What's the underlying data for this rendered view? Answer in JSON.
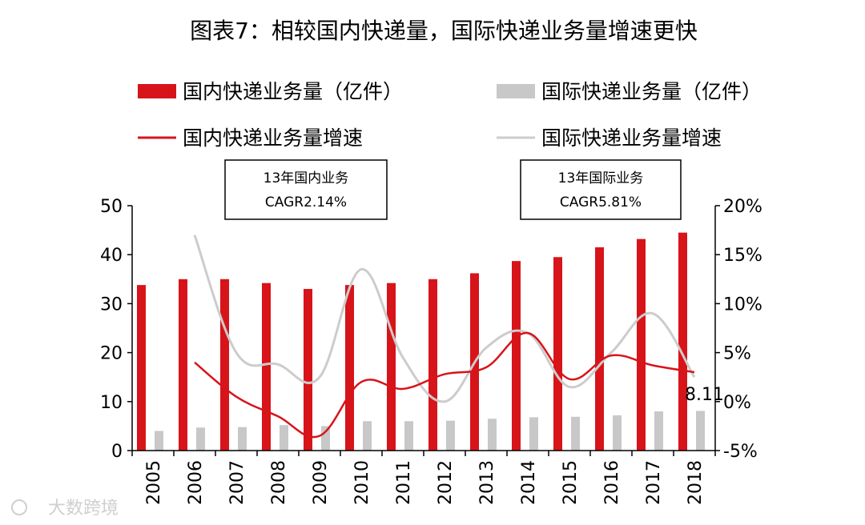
{
  "chart_data": {
    "type": "bar",
    "title": "图表7：相较国内快递量，国际快递业务量增速更快",
    "categories": [
      "2005",
      "2006",
      "2007",
      "2008",
      "2009",
      "2010",
      "2011",
      "2012",
      "2013",
      "2014",
      "2015",
      "2016",
      "2017",
      "2018"
    ],
    "series": [
      {
        "name": "国内快递业务量（亿件）",
        "type": "bar",
        "axis": "left",
        "color": "#d7141a",
        "values": [
          33.8,
          35.0,
          35.0,
          34.2,
          33.0,
          33.8,
          34.2,
          35.0,
          36.2,
          38.7,
          39.5,
          41.5,
          43.2,
          44.5
        ]
      },
      {
        "name": "国际快递业务量（亿件）",
        "type": "bar",
        "axis": "left",
        "color": "#c8c8c8",
        "values": [
          4.0,
          4.7,
          4.8,
          5.2,
          5.0,
          6.0,
          6.0,
          6.1,
          6.5,
          6.8,
          6.9,
          7.2,
          8.0,
          8.1
        ]
      },
      {
        "name": "国内快递业务量增速",
        "type": "line",
        "axis": "right",
        "color": "#d7141a",
        "unit": "%",
        "values": [
          null,
          4.0,
          0.5,
          -1.5,
          -3.5,
          2.0,
          1.3,
          2.8,
          3.5,
          7.0,
          2.3,
          4.7,
          3.7,
          3.0
        ]
      },
      {
        "name": "国际快递业务量增速",
        "type": "line",
        "axis": "right",
        "color": "#cccccc",
        "unit": "%",
        "values": [
          null,
          17.0,
          5.0,
          3.8,
          2.5,
          13.5,
          4.5,
          0.0,
          5.5,
          7.0,
          1.5,
          5.0,
          9.0,
          2.5
        ]
      }
    ],
    "y_left": {
      "ylim": [
        0,
        50
      ],
      "ticks": [
        "0",
        "10",
        "20",
        "30",
        "40",
        "50"
      ]
    },
    "y_right": {
      "ylim": [
        -5,
        20
      ],
      "ticks": [
        "-5%",
        "0%",
        "5%",
        "10%",
        "15%",
        "20%"
      ]
    },
    "legend_position": "top",
    "annotations": [
      {
        "lines": [
          "13年国内业务",
          "CAGR2.14%"
        ]
      },
      {
        "lines": [
          "13年国际业务",
          "CAGR5.81%"
        ]
      }
    ],
    "data_label": "8.11",
    "grid": false
  },
  "watermark": "大数跨境"
}
